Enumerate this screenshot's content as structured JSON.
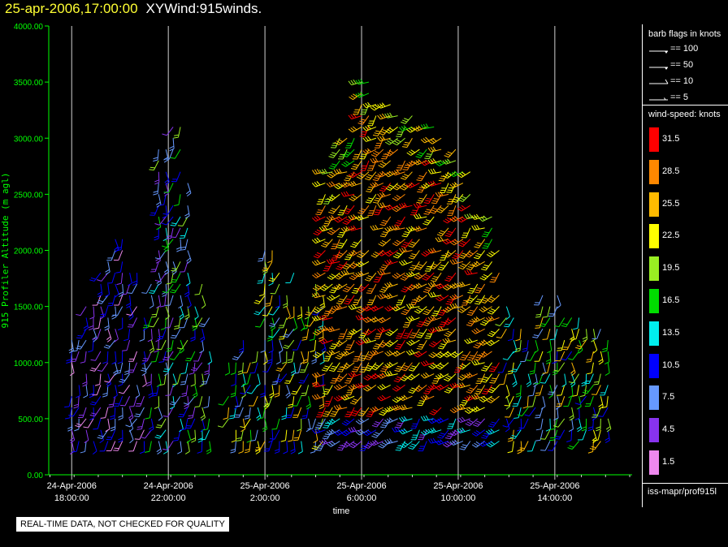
{
  "header": {
    "timestamp": "25-apr-2006,17:00:00",
    "product": "XYWind:915winds."
  },
  "chart_data": {
    "type": "scatter",
    "title": "25-apr-2006,17:00:00  XYWind:915winds.",
    "ylabel": "915 Profiler Altitude (m agl)",
    "xlabel": "time",
    "ylim": [
      0,
      4000
    ],
    "yticks": [
      "0.00",
      "500.00",
      "1000.00",
      "1500.00",
      "2000.00",
      "2500.00",
      "3000.00",
      "3500.00",
      "4000.00"
    ],
    "xticks": [
      {
        "date": "24-Apr-2006",
        "time": "18:00:00"
      },
      {
        "date": "24-Apr-2006",
        "time": "22:00:00"
      },
      {
        "date": "25-Apr-2006",
        "time": "2:00:00"
      },
      {
        "date": "25-Apr-2006",
        "time": "6:00:00"
      },
      {
        "date": "25-Apr-2006",
        "time": "10:00:00"
      },
      {
        "date": "25-Apr-2006",
        "time": "14:00:00"
      }
    ],
    "x_range_hours": [
      -0.95,
      23.2
    ],
    "grid": "vertical lines at labeled ticks",
    "series": [
      {
        "hours_range": [
          0,
          3.2
        ],
        "top": [
          1200,
          1500,
          1900,
          2100,
          1800,
          1500
        ],
        "speed": "low"
      },
      {
        "hours_range": [
          3.3,
          5.8
        ],
        "top": [
          1700,
          2900,
          3150,
          2600,
          1700,
          1400
        ],
        "speed": "low-mid"
      },
      {
        "hours_range": [
          6.5,
          10.5
        ],
        "top": [
          1000,
          1200,
          2000,
          1800,
          1500,
          1700
        ],
        "speed": "mid"
      },
      {
        "hours_range": [
          10.5,
          18.0
        ],
        "top": [
          2700,
          3000,
          3500,
          3300,
          3200,
          3100,
          3000,
          2700,
          2300,
          2100
        ],
        "speed": "high"
      },
      {
        "hours_range": [
          18.0,
          22.5
        ],
        "top": [
          1500,
          1300,
          1600,
          1400,
          1300,
          1200
        ],
        "speed": "mid"
      }
    ]
  },
  "legend": {
    "barb_title": "barb flags in knots",
    "barbs": [
      {
        "label": "== 100"
      },
      {
        "label": "== 50"
      },
      {
        "label": "== 10"
      },
      {
        "label": "== 5"
      }
    ],
    "speed_title": "wind-speed: knots",
    "scale": [
      {
        "label": "31.5",
        "color": "#ff0000"
      },
      {
        "label": "28.5",
        "color": "#ff8800"
      },
      {
        "label": "25.5",
        "color": "#ffbb00"
      },
      {
        "label": "22.5",
        "color": "#ffff00"
      },
      {
        "label": "19.5",
        "color": "#99ee22"
      },
      {
        "label": "16.5",
        "color": "#00dd00"
      },
      {
        "label": "13.5",
        "color": "#00eeee"
      },
      {
        "label": "10.5",
        "color": "#0000ff"
      },
      {
        "label": "7.5",
        "color": "#6699ff"
      },
      {
        "label": "4.5",
        "color": "#8833ee"
      },
      {
        "label": "1.5",
        "color": "#ee88ee"
      }
    ],
    "source": "iss-mapr/prof915l"
  },
  "notice": "REAL-TIME DATA, NOT CHECKED FOR QUALITY",
  "colors": {
    "axis": "#00ff00",
    "grid": "#d0d0d0",
    "title_time": "#ffff33"
  }
}
